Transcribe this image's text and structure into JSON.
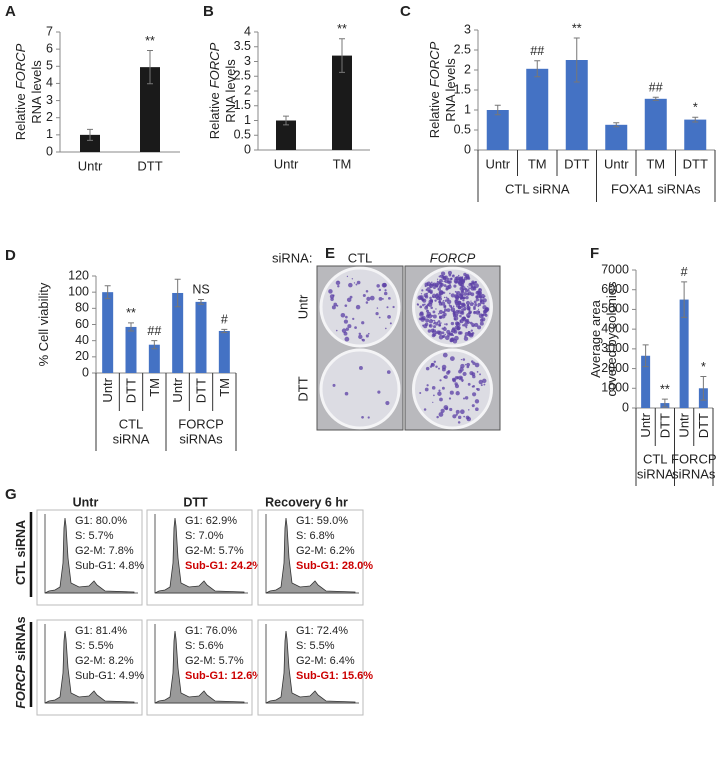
{
  "chart_data": [
    {
      "type": "bar",
      "panel": "A",
      "ylabel": [
        [
          "Relative",
          "FORCP"
        ],
        [
          "RNA levels"
        ]
      ],
      "ylabel_italic": [
        [
          false,
          true
        ],
        [
          false
        ]
      ],
      "categories": [
        "Untr",
        "DTT"
      ],
      "values": [
        1.0,
        4.95
      ],
      "errors": [
        0.32,
        0.97
      ],
      "annotations": [
        null,
        "**"
      ],
      "color": "#1a1a1a",
      "ylim": [
        0,
        7
      ],
      "yticks": [
        0,
        1,
        2,
        3,
        4,
        5,
        6,
        7
      ]
    },
    {
      "type": "bar",
      "panel": "B",
      "ylabel": [
        [
          "Relative",
          "FORCP"
        ],
        [
          "RNA levels"
        ]
      ],
      "ylabel_italic": [
        [
          false,
          true
        ],
        [
          false
        ]
      ],
      "categories": [
        "Untr",
        "TM"
      ],
      "values": [
        1.0,
        3.2
      ],
      "errors": [
        0.15,
        0.57
      ],
      "annotations": [
        null,
        "**"
      ],
      "color": "#1a1a1a",
      "ylim": [
        0,
        4
      ],
      "yticks": [
        0,
        0.5,
        1,
        1.5,
        2,
        2.5,
        3,
        3.5,
        4
      ]
    },
    {
      "type": "bar",
      "panel": "C",
      "ylabel": [
        [
          "Relative",
          "FORCP"
        ],
        [
          "RNA levels"
        ]
      ],
      "ylabel_italic": [
        [
          false,
          true
        ],
        [
          false
        ]
      ],
      "categories": [
        "Untr",
        "TM",
        "DTT",
        "Untr",
        "TM",
        "DTT"
      ],
      "groups": [
        [
          "CTL siRNA"
        ],
        [
          "FOXA1 siRNAs"
        ]
      ],
      "values": [
        1.0,
        2.03,
        2.25,
        0.63,
        1.28,
        0.76
      ],
      "errors": [
        0.12,
        0.2,
        0.55,
        0.05,
        0.04,
        0.06
      ],
      "annotations": [
        null,
        "##",
        "**",
        null,
        "##",
        "*"
      ],
      "color": "#4472c4",
      "ylim": [
        0,
        3
      ],
      "yticks": [
        0,
        0.5,
        1,
        1.5,
        2,
        2.5,
        3
      ]
    },
    {
      "type": "bar",
      "panel": "D",
      "ylabel": [
        [
          "% Cell viability"
        ]
      ],
      "ylabel_italic": [
        [
          false
        ]
      ],
      "categories": [
        "Untr",
        "DTT",
        "TM",
        "Untr",
        "DTT",
        "TM"
      ],
      "groups": [
        [
          "CTL",
          "siRNA"
        ],
        [
          "FORCP",
          "siRNAs"
        ]
      ],
      "values": [
        100,
        57,
        35,
        99,
        88,
        52
      ],
      "errors": [
        8,
        5,
        5,
        17,
        3,
        2
      ],
      "annotations": [
        null,
        "**",
        "##",
        null,
        "NS",
        "#"
      ],
      "color": "#4472c4",
      "ylim": [
        0,
        120
      ],
      "yticks": [
        0,
        20,
        40,
        60,
        80,
        100,
        120
      ]
    },
    {
      "type": "bar",
      "panel": "F",
      "ylabel": [
        [
          "Average area"
        ],
        [
          "covered by colonies"
        ]
      ],
      "ylabel_italic": [
        [
          false
        ],
        [
          false
        ]
      ],
      "categories": [
        "Untr",
        "DTT",
        "Untr",
        "DTT"
      ],
      "groups": [
        [
          "CTL",
          "siRNA"
        ],
        [
          "FORCP",
          "siRNAs"
        ]
      ],
      "values": [
        2650,
        250,
        5500,
        1000
      ],
      "errors": [
        550,
        200,
        900,
        600
      ],
      "annotations": [
        null,
        "**",
        "#",
        "*"
      ],
      "color": "#4472c4",
      "ylim": [
        0,
        7000
      ],
      "yticks": [
        0,
        1000,
        2000,
        3000,
        4000,
        5000,
        6000,
        7000
      ]
    }
  ],
  "figure_e": {
    "panel": "E",
    "row_title": "siRNA:",
    "columns": [
      "CTL",
      "FORCP"
    ],
    "column_italic": [
      false,
      true
    ],
    "rows": [
      "Untr",
      "DTT"
    ]
  },
  "figure_g": {
    "panel": "G",
    "columns": [
      "Untr",
      "DTT",
      "Recovery 6 hr"
    ],
    "rows": [
      [
        "CTL siRNA"
      ],
      [
        "FORCP",
        "siRNAs"
      ]
    ],
    "row_italic": [
      [
        false
      ],
      [
        true,
        false
      ]
    ],
    "highlight_color": "#cc0000",
    "highlight_last": [
      false,
      true,
      true
    ],
    "cells": [
      [
        [
          "G1: 80.0%",
          "S: 5.7%",
          "G2-M: 7.8%",
          "Sub-G1: 4.8%"
        ],
        [
          "G1: 62.9%",
          "S: 7.0%",
          "G2-M: 5.7%",
          "Sub-G1: 24.2%"
        ],
        [
          "G1: 59.0%",
          "S: 6.8%",
          "G2-M: 6.2%",
          "Sub-G1: 28.0%"
        ]
      ],
      [
        [
          "G1: 81.4%",
          "S: 5.5%",
          "G2-M: 8.2%",
          "Sub-G1: 4.9%"
        ],
        [
          "G1: 76.0%",
          "S: 5.6%",
          "G2-M: 5.7%",
          "Sub-G1: 12.6%"
        ],
        [
          "G1: 72.4%",
          "S: 5.5%",
          "G2-M: 6.4%",
          "Sub-G1: 15.6%"
        ]
      ]
    ]
  }
}
